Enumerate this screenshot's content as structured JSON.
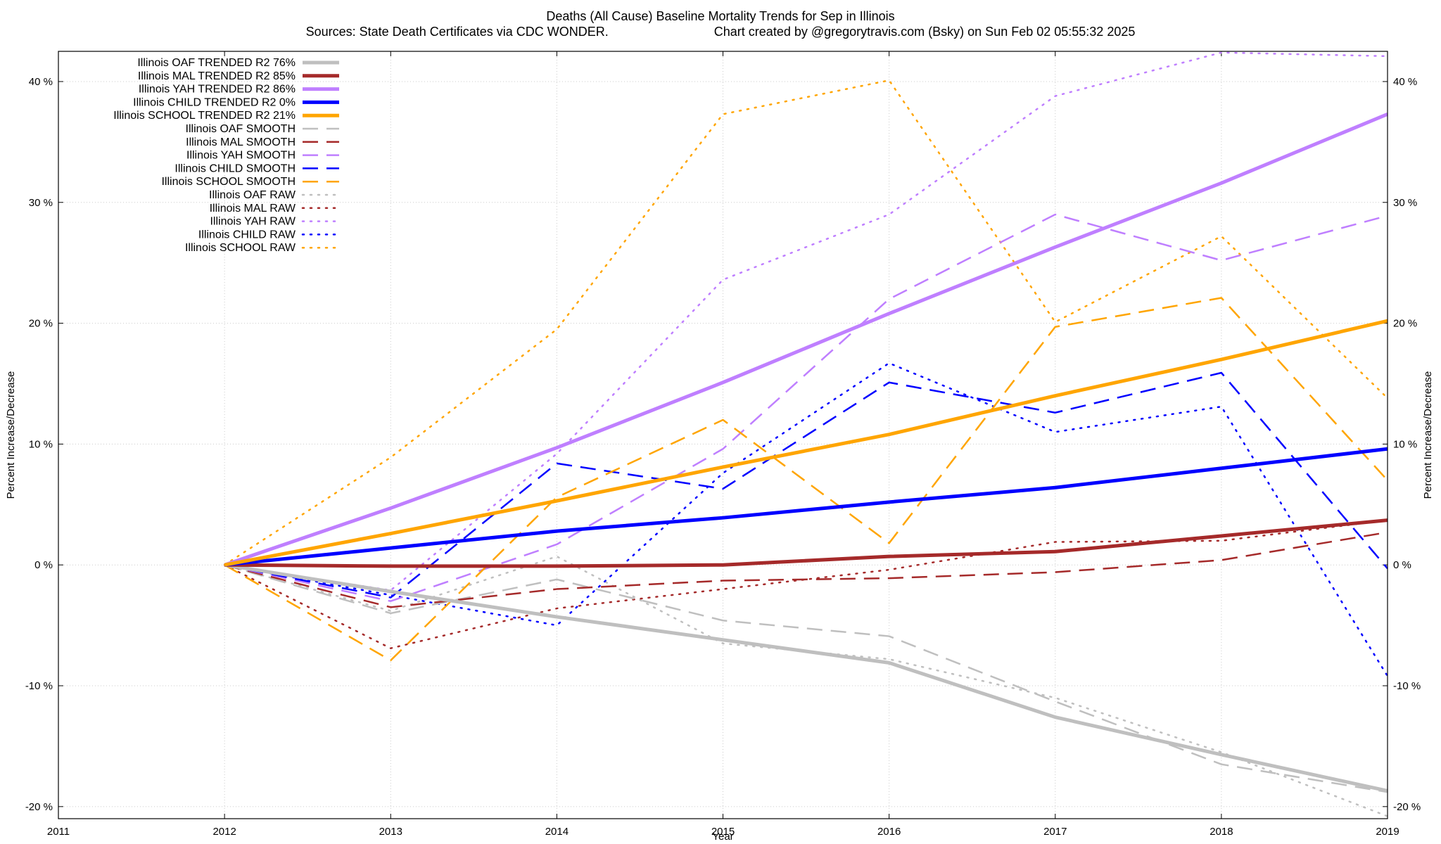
{
  "chart_data": {
    "type": "line",
    "title": "Deaths (All Cause)  Baseline Mortality Trends for Sep in Illinois",
    "subtitle_left": "Sources: State Death Certificates via CDC WONDER.",
    "subtitle_right": "Chart created by @gregorytravis.com (Bsky) on Sun Feb 02 05:55:32 2025",
    "xlabel": "Year",
    "ylabel_left": "Percent Increase/Decrease",
    "ylabel_right": "Percent Increase/Decrease",
    "xlim": [
      2011,
      2019
    ],
    "ylim": [
      -21,
      42.5
    ],
    "x_ticks": [
      "2011",
      "2012",
      "2013",
      "2014",
      "2015",
      "2016",
      "2017",
      "2018",
      "2019"
    ],
    "y_ticks": [
      "-20 %",
      "-10 %",
      "0 %",
      "10 %",
      "20 %",
      "30 %",
      "40 %"
    ],
    "y_tick_values": [
      -20,
      -10,
      0,
      10,
      20,
      30,
      40
    ],
    "grid": true,
    "legend_position": "top-left",
    "x": [
      2012,
      2013,
      2014,
      2015,
      2016,
      2017,
      2018,
      2019
    ],
    "series": [
      {
        "name": "Illinois OAF TRENDED R2  76%",
        "color": "#bfbfbf",
        "style": "solid",
        "values": [
          0,
          -2.2,
          -4.3,
          -6.2,
          -8.1,
          -12.6,
          -15.7,
          -18.7
        ]
      },
      {
        "name": "Illinois MAL TRENDED R2  85%",
        "color": "#a52a2a",
        "style": "solid",
        "values": [
          0,
          -0.1,
          -0.1,
          0.0,
          0.7,
          1.1,
          2.4,
          3.7
        ]
      },
      {
        "name": "Illinois YAH TRENDED R2  86%",
        "color": "#bf7fff",
        "style": "solid",
        "values": [
          0,
          4.7,
          9.7,
          15.1,
          20.8,
          26.3,
          31.6,
          37.3
        ]
      },
      {
        "name": "Illinois CHILD TRENDED R2  0%",
        "color": "#0000ff",
        "style": "solid",
        "values": [
          0,
          1.4,
          2.8,
          3.9,
          5.2,
          6.4,
          8.0,
          9.6
        ]
      },
      {
        "name": "Illinois SCHOOL TRENDED R2  21%",
        "color": "#ffa500",
        "style": "solid",
        "values": [
          0,
          2.6,
          5.3,
          8.1,
          10.8,
          14.0,
          17.0,
          20.2
        ]
      },
      {
        "name": "Illinois OAF SMOOTH",
        "color": "#bfbfbf",
        "style": "dashed",
        "values": [
          0,
          -4.0,
          -1.2,
          -4.6,
          -5.9,
          -11.3,
          -16.5,
          -18.8
        ]
      },
      {
        "name": "Illinois MAL SMOOTH",
        "color": "#a52a2a",
        "style": "dashed",
        "values": [
          0,
          -3.5,
          -2.0,
          -1.3,
          -1.1,
          -0.6,
          0.4,
          2.7
        ]
      },
      {
        "name": "Illinois YAH SMOOTH",
        "color": "#bf7fff",
        "style": "dashed",
        "values": [
          0,
          -3.0,
          1.7,
          9.6,
          22.0,
          29.0,
          25.2,
          28.9
        ]
      },
      {
        "name": "Illinois CHILD SMOOTH",
        "color": "#0000ff",
        "style": "dashed",
        "values": [
          0,
          -2.7,
          8.4,
          6.3,
          15.1,
          12.6,
          15.9,
          -0.3
        ]
      },
      {
        "name": "Illinois SCHOOL SMOOTH",
        "color": "#ffa500",
        "style": "dashed",
        "values": [
          0,
          -7.9,
          5.6,
          12.0,
          1.8,
          19.7,
          22.1,
          7.0
        ]
      },
      {
        "name": "Illinois OAF RAW",
        "color": "#bfbfbf",
        "style": "dotted",
        "values": [
          0,
          -3.8,
          0.7,
          -6.5,
          -7.8,
          -11.0,
          -15.5,
          -20.8
        ]
      },
      {
        "name": "Illinois MAL RAW",
        "color": "#a52a2a",
        "style": "dotted",
        "values": [
          0,
          -6.9,
          -3.6,
          -2.0,
          -0.4,
          1.9,
          2.0,
          3.7
        ]
      },
      {
        "name": "Illinois YAH RAW",
        "color": "#bf7fff",
        "style": "dotted",
        "values": [
          0,
          -2.1,
          9.2,
          23.6,
          29.0,
          38.8,
          42.4,
          42.1
        ]
      },
      {
        "name": "Illinois CHILD RAW",
        "color": "#0000ff",
        "style": "dotted",
        "values": [
          0,
          -2.5,
          -5.0,
          7.6,
          16.7,
          11.0,
          13.1,
          -9.2
        ]
      },
      {
        "name": "Illinois SCHOOL RAW",
        "color": "#ffa500",
        "style": "dotted",
        "values": [
          0,
          8.9,
          19.5,
          37.3,
          40.1,
          20.1,
          27.2,
          13.8
        ]
      }
    ]
  }
}
